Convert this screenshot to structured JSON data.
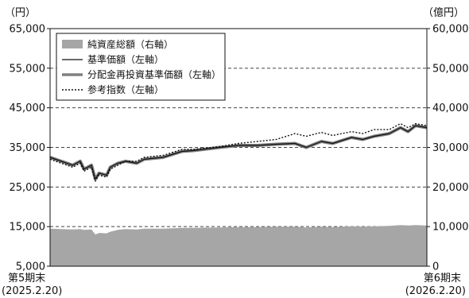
{
  "chart_data": {
    "type": "line",
    "left_unit": "（円）",
    "right_unit": "（億円）",
    "left_ticks": [
      "65,000",
      "55,000",
      "45,000",
      "35,000",
      "25,000",
      "15,000",
      "5,000"
    ],
    "right_ticks": [
      "60,000",
      "50,000",
      "40,000",
      "30,000",
      "20,000",
      "10,000",
      "0"
    ],
    "left_axis": {
      "min": 5000,
      "max": 65000,
      "step": 10000
    },
    "right_axis": {
      "min": 0,
      "max": 60000,
      "step": 10000
    },
    "x_labels": [
      {
        "line1": "第5期末",
        "line2": "(2025.2.20)"
      },
      {
        "line1": "第6期末",
        "line2": "(2026.2.20)"
      }
    ],
    "legend": {
      "placement": "top-left",
      "items": [
        {
          "label": "純資産総額（右軸）",
          "style": "area"
        },
        {
          "label": "基準価額（左軸）",
          "style": "solid"
        },
        {
          "label": "分配金再投資基準価額（左軸）",
          "style": "thick"
        },
        {
          "label": "参考指数（左軸）",
          "style": "dotted"
        }
      ]
    },
    "grid": "dashed horizontal at each tick",
    "colors": {
      "area": "#a6a6a6",
      "base_price": "#111111",
      "reinvested": "#808080",
      "reference": "#111111",
      "grid": "#444444"
    },
    "x": [
      0,
      0.06,
      0.08,
      0.09,
      0.11,
      0.12,
      0.13,
      0.15,
      0.16,
      0.18,
      0.2,
      0.23,
      0.25,
      0.3,
      0.35,
      0.38,
      0.45,
      0.5,
      0.55,
      0.6,
      0.65,
      0.68,
      0.72,
      0.75,
      0.8,
      0.83,
      0.86,
      0.9,
      0.93,
      0.95,
      0.97,
      1.0
    ],
    "series": [
      {
        "name": "基準価額（左軸）",
        "axis": "left",
        "values": [
          32500,
          30500,
          31500,
          29500,
          30500,
          27000,
          28500,
          28000,
          30000,
          31000,
          31500,
          31000,
          32000,
          32500,
          34000,
          34200,
          35000,
          35500,
          35500,
          35800,
          36000,
          35000,
          36500,
          36000,
          37500,
          37000,
          37800,
          38500,
          40000,
          39000,
          40500,
          40000
        ]
      },
      {
        "name": "分配金再投資基準価額（左軸）",
        "axis": "left",
        "values": [
          32500,
          30500,
          31500,
          29500,
          30500,
          27000,
          28500,
          28000,
          30000,
          31000,
          31500,
          31000,
          32000,
          32500,
          34000,
          34200,
          35000,
          35500,
          35500,
          35800,
          36000,
          35000,
          36500,
          36000,
          37500,
          37000,
          37800,
          38500,
          40000,
          39000,
          40500,
          40000
        ]
      },
      {
        "name": "参考指数（左軸）",
        "axis": "left",
        "values": [
          32000,
          30000,
          31000,
          29000,
          30000,
          26500,
          28000,
          27500,
          29500,
          30500,
          31500,
          31500,
          32500,
          33000,
          34500,
          34500,
          35200,
          36000,
          36500,
          37000,
          38500,
          37800,
          38800,
          38000,
          39000,
          38500,
          39500,
          39500,
          41000,
          40000,
          41000,
          40500
        ]
      },
      {
        "name": "純資産総額（右軸）",
        "axis": "right",
        "values": [
          9500,
          9300,
          9400,
          9200,
          9300,
          8000,
          8400,
          8300,
          8700,
          9200,
          9400,
          9300,
          9500,
          9500,
          9700,
          9700,
          9800,
          9900,
          9900,
          10000,
          10000,
          9800,
          10000,
          9900,
          10100,
          10000,
          10100,
          10200,
          10400,
          10300,
          10400,
          10300
        ]
      }
    ]
  }
}
